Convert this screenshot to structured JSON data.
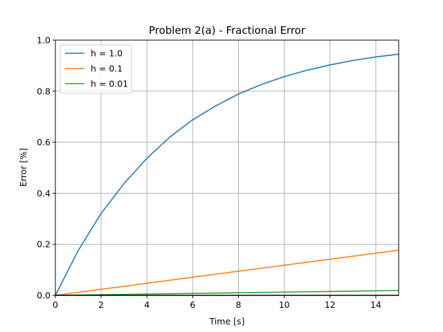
{
  "chart_data": {
    "type": "line",
    "title": "Problem 2(a) - Fractional Error",
    "xlabel": "Time [s]",
    "ylabel": "Error [%]",
    "xlim": [
      0,
      15
    ],
    "ylim": [
      0,
      1.0
    ],
    "xticks": [
      0,
      2,
      4,
      6,
      8,
      10,
      12,
      14
    ],
    "xtick_labels": [
      "0",
      "2",
      "4",
      "6",
      "8",
      "10",
      "12",
      "14"
    ],
    "yticks": [
      0,
      0.2,
      0.4,
      0.6,
      0.8,
      1.0
    ],
    "ytick_labels": [
      "0.0",
      "0.2",
      "0.4",
      "0.6",
      "0.8",
      "1.0"
    ],
    "grid": true,
    "legend_position": "top-left",
    "series": [
      {
        "name": "h = 1.0",
        "color": "#1f77b4",
        "x": [
          0,
          1,
          2,
          3,
          4,
          5,
          6,
          7,
          8,
          9,
          10,
          11,
          12,
          13,
          14,
          15
        ],
        "y": [
          0.0,
          0.176,
          0.321,
          0.438,
          0.537,
          0.62,
          0.688,
          0.742,
          0.789,
          0.826,
          0.857,
          0.882,
          0.903,
          0.92,
          0.934,
          0.945
        ]
      },
      {
        "name": "h = 0.1",
        "color": "#ff7f0e",
        "x": [
          0,
          15
        ],
        "y": [
          0.0,
          0.177
        ]
      },
      {
        "name": "h = 0.01",
        "color": "#2ca02c",
        "x": [
          0,
          15
        ],
        "y": [
          0.0,
          0.019
        ]
      }
    ],
    "baseline": {
      "color": "#000000",
      "x": [
        0,
        15
      ],
      "y": [
        0,
        0
      ]
    }
  }
}
